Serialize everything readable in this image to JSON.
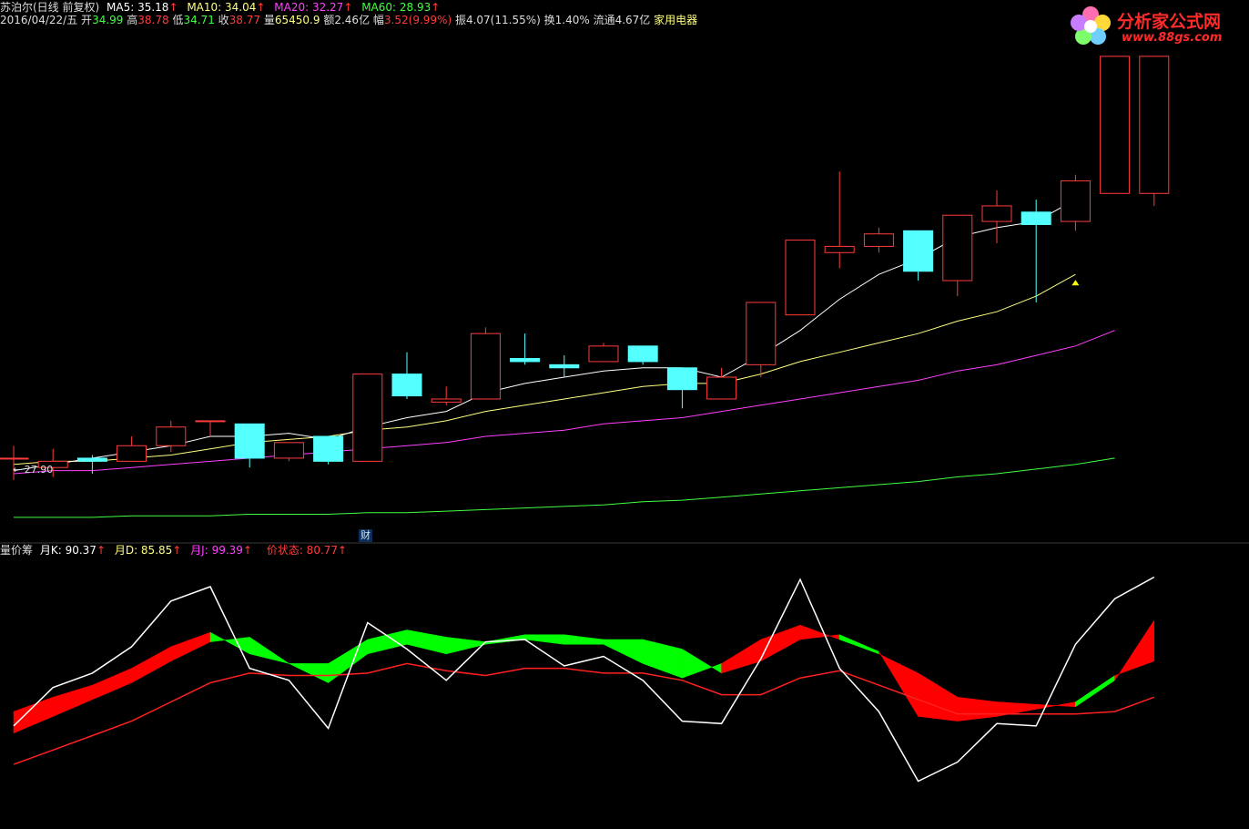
{
  "header": {
    "stock_name": "苏泊尔(日线 前复权)",
    "ma5": "MA5: 35.18",
    "ma10": "MA10: 34.04",
    "ma20": "MA20: 32.27",
    "ma60": "MA60: 28.93",
    "arrow": "↑",
    "date": "2016/04/22/五",
    "open_label": "开",
    "open_value": "34.99",
    "high_label": "高",
    "high_value": "38.78",
    "low_label": "低",
    "low_value": "34.71",
    "close_label": "收",
    "close_value": "38.77",
    "volume_label": "量",
    "volume_value": "65450.9",
    "amount_label": "额",
    "amount_value": "2.46亿",
    "change_label": "幅",
    "change_value": "3.52(9.99%)",
    "amplitude": "振4.07(11.55%)",
    "turnover": "换1.40%",
    "float_cap": "流通4.67亿",
    "sector": "家用电器"
  },
  "indicator_header": {
    "name": "量价筹",
    "k": "月K: 90.37",
    "d": "月D: 85.85",
    "j": "月J: 99.39",
    "state": "价状态: 80.77",
    "arrow": "↑"
  },
  "logo": {
    "text": "分析家公式网",
    "url": "www.88gs.com"
  },
  "badges": {
    "finance": "财",
    "low_price_tag": "← 27.90"
  },
  "colors": {
    "up": "#ff3c3c",
    "down": "#54ffff",
    "ma5": "#ffffff",
    "ma10": "#ffff80",
    "ma20": "#ff40ff",
    "ma60": "#40ff40",
    "k_line": "#ffffff",
    "d_line": "#ff2020",
    "fill_up": "#ff0000",
    "fill_down": "#00ff00"
  },
  "chart_data": [
    {
      "type": "candlestick",
      "title": "苏泊尔(日线 前复权)",
      "y_range": [
        27.5,
        38.8
      ],
      "candles": [
        {
          "o": 28.9,
          "h": 29.3,
          "l": 28.2,
          "c": 28.9
        },
        {
          "o": 28.6,
          "h": 29.2,
          "l": 28.3,
          "c": 28.8
        },
        {
          "o": 28.9,
          "h": 29.0,
          "l": 28.4,
          "c": 28.8
        },
        {
          "o": 28.8,
          "h": 29.6,
          "l": 28.8,
          "c": 29.3
        },
        {
          "o": 29.3,
          "h": 30.1,
          "l": 29.1,
          "c": 29.9
        },
        {
          "o": 30.1,
          "h": 30.1,
          "l": 29.6,
          "c": 30.1
        },
        {
          "o": 30.0,
          "h": 30.0,
          "l": 28.6,
          "c": 28.9
        },
        {
          "o": 28.9,
          "h": 29.4,
          "l": 28.8,
          "c": 29.4
        },
        {
          "o": 29.6,
          "h": 29.6,
          "l": 28.7,
          "c": 28.8
        },
        {
          "o": 28.8,
          "h": 31.6,
          "l": 28.8,
          "c": 31.6
        },
        {
          "o": 31.6,
          "h": 32.3,
          "l": 30.8,
          "c": 30.9
        },
        {
          "o": 30.7,
          "h": 31.2,
          "l": 30.6,
          "c": 30.8
        },
        {
          "o": 30.8,
          "h": 33.1,
          "l": 30.8,
          "c": 32.9
        },
        {
          "o": 32.1,
          "h": 32.9,
          "l": 31.9,
          "c": 32.0
        },
        {
          "o": 31.9,
          "h": 32.2,
          "l": 31.5,
          "c": 31.8
        },
        {
          "o": 32.0,
          "h": 32.6,
          "l": 32.0,
          "c": 32.5
        },
        {
          "o": 32.5,
          "h": 32.5,
          "l": 31.9,
          "c": 32.0
        },
        {
          "o": 31.8,
          "h": 31.8,
          "l": 30.5,
          "c": 31.1
        },
        {
          "o": 30.8,
          "h": 31.8,
          "l": 30.8,
          "c": 31.5
        },
        {
          "o": 31.9,
          "h": 33.9,
          "l": 31.5,
          "c": 33.9
        },
        {
          "o": 33.5,
          "h": 35.9,
          "l": 33.5,
          "c": 35.9
        },
        {
          "o": 35.5,
          "h": 38.1,
          "l": 35.0,
          "c": 35.7
        },
        {
          "o": 35.7,
          "h": 36.3,
          "l": 35.5,
          "c": 36.1
        },
        {
          "o": 36.2,
          "h": 36.2,
          "l": 34.6,
          "c": 34.9
        },
        {
          "o": 34.6,
          "h": 36.7,
          "l": 34.1,
          "c": 36.7
        },
        {
          "o": 36.5,
          "h": 37.5,
          "l": 35.8,
          "c": 37.0
        },
        {
          "o": 36.8,
          "h": 37.2,
          "l": 33.9,
          "c": 36.4
        },
        {
          "o": 36.5,
          "h": 38.0,
          "l": 36.2,
          "c": 37.8
        },
        {
          "o": 37.4,
          "h": 41.8,
          "l": 37.4,
          "c": 41.8
        },
        {
          "o": 37.4,
          "h": 41.8,
          "l": 37.0,
          "c": 41.8
        }
      ],
      "ma5": [
        28.5,
        28.7,
        28.9,
        29.1,
        29.3,
        29.6,
        29.6,
        29.7,
        29.5,
        29.9,
        30.2,
        30.4,
        31.0,
        31.3,
        31.5,
        31.7,
        31.8,
        31.8,
        31.5,
        32.2,
        33.0,
        34.0,
        34.8,
        35.3,
        36.0,
        36.3,
        36.5,
        37.2,
        null,
        null
      ],
      "ma10": [
        28.7,
        28.8,
        28.8,
        28.9,
        29.0,
        29.2,
        29.4,
        29.5,
        29.6,
        29.8,
        29.9,
        30.1,
        30.4,
        30.6,
        30.8,
        31.0,
        31.2,
        31.3,
        31.3,
        31.6,
        32.0,
        32.3,
        32.6,
        32.9,
        33.3,
        33.6,
        34.1,
        34.8,
        null,
        null
      ],
      "ma20": [
        28.4,
        28.5,
        28.5,
        28.6,
        28.7,
        28.8,
        28.9,
        29.0,
        29.1,
        29.2,
        29.3,
        29.4,
        29.6,
        29.7,
        29.8,
        30.0,
        30.1,
        30.2,
        30.4,
        30.6,
        30.8,
        31.0,
        31.2,
        31.4,
        31.7,
        31.9,
        32.2,
        32.5,
        33.0,
        null
      ],
      "ma60": [
        27.0,
        27.0,
        27.0,
        27.05,
        27.05,
        27.05,
        27.1,
        27.1,
        27.1,
        27.15,
        27.15,
        27.2,
        27.25,
        27.3,
        27.35,
        27.4,
        27.5,
        27.55,
        27.65,
        27.75,
        27.85,
        27.95,
        28.05,
        28.15,
        28.3,
        28.4,
        28.55,
        28.7,
        28.9,
        null
      ],
      "marker_index": 27
    },
    {
      "type": "line",
      "title": "量价筹",
      "y_range": [
        -5,
        105
      ],
      "series": [
        {
          "name": "月K",
          "values": [
            36,
            52,
            58,
            69,
            88,
            94,
            60,
            55,
            35,
            79,
            68,
            55,
            71,
            72,
            61,
            65,
            55,
            38,
            37,
            64,
            97,
            60,
            42,
            13,
            21,
            37,
            36,
            70,
            89,
            98
          ]
        },
        {
          "name": "月D",
          "values": [
            33,
            40,
            47,
            54,
            63,
            71,
            73,
            72,
            72,
            72,
            76,
            73,
            71,
            74,
            74,
            72,
            72,
            68,
            63,
            63,
            70,
            74,
            67,
            58,
            52,
            52,
            52,
            52,
            57,
            63
          ]
        },
        {
          "name": "价状态",
          "values": [
            20,
            26,
            32,
            38,
            46,
            54,
            58,
            57,
            57,
            58,
            62,
            59,
            57,
            60,
            60,
            58,
            58,
            55,
            49,
            49,
            56,
            59,
            53,
            47,
            41,
            41,
            41,
            41,
            42,
            48
          ]
        },
        {
          "name": "band_upper",
          "values": [
            42,
            48,
            53,
            60,
            69,
            75,
            66,
            62,
            54,
            66,
            70,
            66,
            70,
            72,
            70,
            70,
            62,
            56,
            62,
            72,
            78,
            72,
            66,
            58,
            48,
            46,
            45,
            44,
            55,
            80
          ]
        },
        {
          "name": "band_lower",
          "values": [
            33,
            40,
            47,
            54,
            63,
            71,
            73,
            62,
            62,
            72,
            76,
            73,
            71,
            74,
            74,
            72,
            72,
            68,
            58,
            63,
            72,
            74,
            67,
            40,
            38,
            40,
            43,
            46,
            57,
            63
          ]
        }
      ]
    }
  ]
}
